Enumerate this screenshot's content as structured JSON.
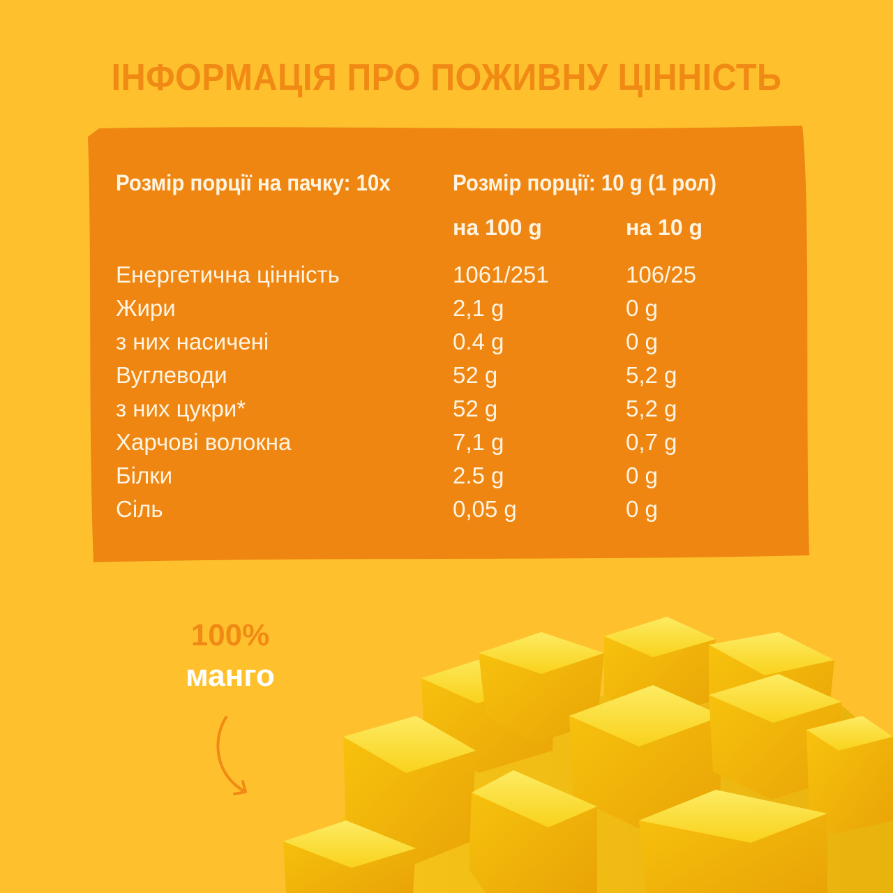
{
  "title": "ІНФОРМАЦІЯ ПРО ПОЖИВНУ ЦІННІСТЬ",
  "serving": {
    "per_pack": "Розмір порції на пачку: 10x",
    "size": "Розмір порції: 10 g (1 рол)"
  },
  "columns": {
    "per_100": "на 100 g",
    "per_10": "на 10 g"
  },
  "nutrients": [
    {
      "name": "Енергетична цінність",
      "per_100": "1061/251",
      "per_10": "106/25"
    },
    {
      "name": "Жири",
      "per_100": "2,1 g",
      "per_10": "0 g"
    },
    {
      "name": "з них насичені",
      "per_100": "0.4 g",
      "per_10": "0 g"
    },
    {
      "name": "Вуглеводи",
      "per_100": "52 g",
      "per_10": "5,2 g"
    },
    {
      "name": "з них цукри*",
      "per_100": "52 g",
      "per_10": "5,2 g"
    },
    {
      "name": "Харчові волокна",
      "per_100": "7,1 g",
      "per_10": "0,7 g"
    },
    {
      "name": "Білки",
      "per_100": "2.5 g",
      "per_10": "0 g"
    },
    {
      "name": "Сіль",
      "per_100": "0,05 g",
      "per_10": "0 g"
    }
  ],
  "tagline": {
    "percent": "100%",
    "word": "манго"
  },
  "colors": {
    "background": "#FEC12D",
    "panel": "#EE8611",
    "title": "#F08A14",
    "panel_text": "#FFF4E2",
    "mango_flesh": "#F9C80E"
  },
  "icons": {
    "arrow": "curved-arrow-icon",
    "image": "mango-cubes-illustration"
  }
}
